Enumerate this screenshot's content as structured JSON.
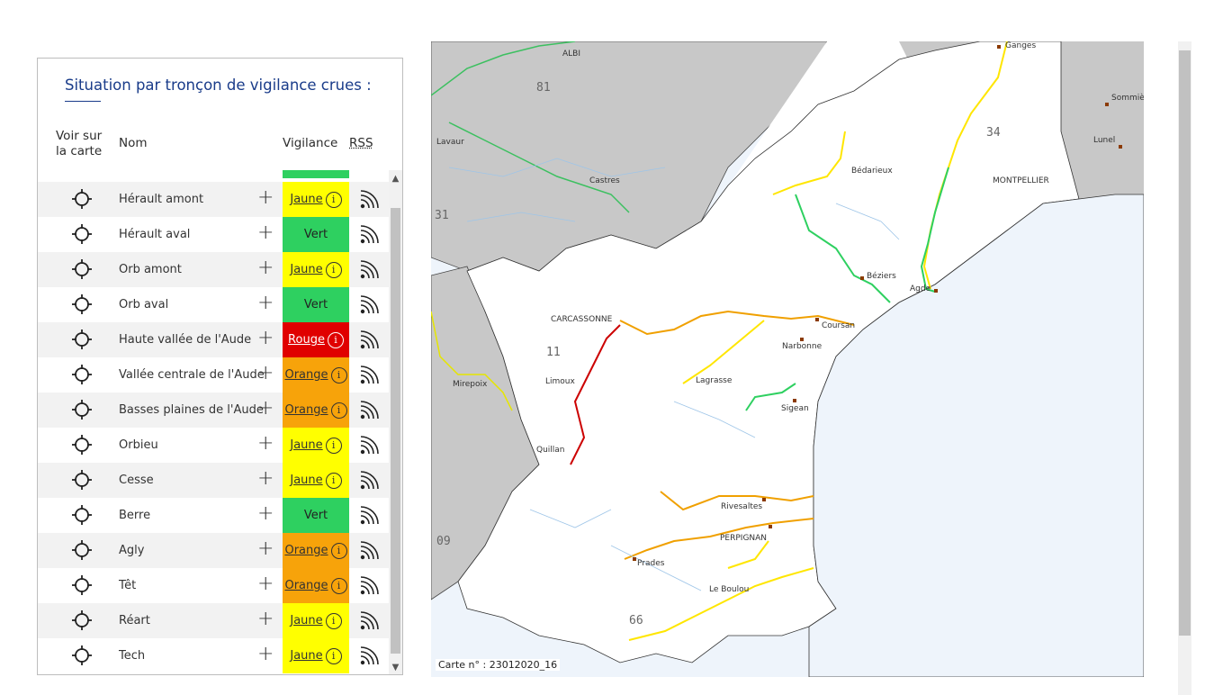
{
  "panel": {
    "title": "Situation par tronçon de vigilance crues :",
    "headers": {
      "map": "Voir sur la carte",
      "name": "Nom",
      "vigilance": "Vigilance",
      "rss": "RSS"
    }
  },
  "colors": {
    "jaune": "#ffff00",
    "vert": "#2ed060",
    "orange": "#f7a30a",
    "rouge": "#e00000",
    "title": "#1a3c8a"
  },
  "rows": [
    {
      "name": "Hérault amont",
      "level": "jaune",
      "label": "Jaune",
      "info": true
    },
    {
      "name": "Hérault aval",
      "level": "vert",
      "label": "Vert",
      "info": false
    },
    {
      "name": "Orb amont",
      "level": "jaune",
      "label": "Jaune",
      "info": true
    },
    {
      "name": "Orb aval",
      "level": "vert",
      "label": "Vert",
      "info": false
    },
    {
      "name": "Haute vallée de l'Aude",
      "level": "rouge",
      "label": "Rouge",
      "info": true
    },
    {
      "name": "Vallée centrale de l'Aude",
      "level": "orange",
      "label": "Orange",
      "info": true
    },
    {
      "name": "Basses plaines de l'Aude",
      "level": "orange",
      "label": "Orange",
      "info": true
    },
    {
      "name": "Orbieu",
      "level": "jaune",
      "label": "Jaune",
      "info": true
    },
    {
      "name": "Cesse",
      "level": "jaune",
      "label": "Jaune",
      "info": true
    },
    {
      "name": "Berre",
      "level": "vert",
      "label": "Vert",
      "info": false
    },
    {
      "name": "Agly",
      "level": "orange",
      "label": "Orange",
      "info": true
    },
    {
      "name": "Têt",
      "level": "orange",
      "label": "Orange",
      "info": true
    },
    {
      "name": "Réart",
      "level": "jaune",
      "label": "Jaune",
      "info": true
    },
    {
      "name": "Tech",
      "level": "jaune",
      "label": "Jaune",
      "info": true
    }
  ],
  "icons": {
    "target": "crosshair-icon",
    "plus": "plus-icon",
    "info": "info-icon",
    "rss": "rss-icon"
  },
  "map": {
    "caption": "Carte n° : 23012020_16",
    "cities": [
      "ALBI",
      "Lavaur",
      "Castres",
      "Bédarieux",
      "Ganges",
      "Sommières",
      "Lunel",
      "MONTPELLIER",
      "Agde",
      "Béziers",
      "CARCASSONNE",
      "Coursan",
      "Narbonne",
      "Mirepoix",
      "Limoux",
      "Lagrasse",
      "Sigean",
      "Quillan",
      "Rivesaltes",
      "PERPIGNAN",
      "Prades",
      "Le Boulou"
    ],
    "departments": [
      "81",
      "34",
      "31",
      "11",
      "09",
      "66"
    ]
  }
}
